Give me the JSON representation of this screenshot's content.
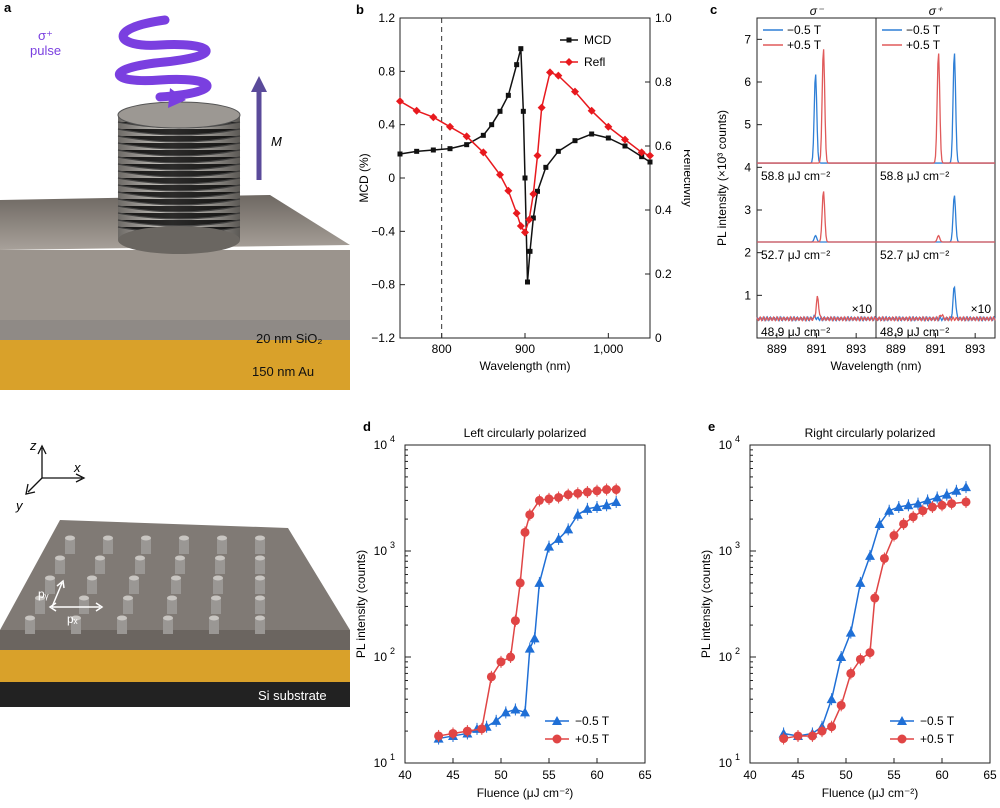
{
  "panel_labels": {
    "a": "a",
    "b": "b",
    "c": "c",
    "d": "d",
    "e": "e"
  },
  "panel_a": {
    "pulse_label": "pulse",
    "sigma_label": "σ⁺",
    "m_label": "M",
    "layer_sio2": "20 nm SiO₂",
    "layer_au": "150 nm Au",
    "axis_z": "z",
    "axis_x": "x",
    "axis_y": "y",
    "px_label": "pₓ",
    "py_label": "pᵧ",
    "substrate": "Si substrate",
    "colors": {
      "purple": "#7a3fe0",
      "gold": "#d9a12a",
      "gray": "#8a8580",
      "dark": "#222"
    }
  },
  "chart_data": [
    {
      "id": "b",
      "type": "line",
      "xlabel": "Wavelength (nm)",
      "ylabel": "MCD (%)",
      "y2label": "Reflectivity",
      "xlim": [
        750,
        1050
      ],
      "ylim": [
        -1.2,
        1.2
      ],
      "y2lim": [
        0,
        1.0
      ],
      "xticks": [
        800,
        900,
        1000
      ],
      "xtick_labels": [
        "800",
        "900",
        "1,000"
      ],
      "yticks": [
        -1.2,
        -0.8,
        -0.4,
        0,
        0.4,
        0.8,
        1.2
      ],
      "ytick_labels": [
        "−1.2",
        "−0.8",
        "−0.4",
        "0",
        "0.4",
        "0.8",
        "1.2"
      ],
      "y2ticks": [
        0,
        0.2,
        0.4,
        0.6,
        0.8,
        1.0
      ],
      "y2tick_labels": [
        "0",
        "0.2",
        "0.4",
        "0.6",
        "0.8",
        "1.0"
      ],
      "vline": 800,
      "series": [
        {
          "name": "MCD",
          "color": "#111111",
          "marker": "square",
          "x": [
            750,
            770,
            790,
            810,
            830,
            850,
            860,
            870,
            880,
            890,
            895,
            898,
            900,
            903,
            906,
            910,
            915,
            925,
            940,
            960,
            980,
            1000,
            1020,
            1040,
            1050
          ],
          "y": [
            0.18,
            0.2,
            0.21,
            0.22,
            0.25,
            0.32,
            0.4,
            0.5,
            0.62,
            0.85,
            0.97,
            0.5,
            0.0,
            -0.78,
            -0.55,
            -0.3,
            -0.1,
            0.08,
            0.2,
            0.28,
            0.33,
            0.3,
            0.24,
            0.16,
            0.12
          ]
        },
        {
          "name": "Refl",
          "color": "#e8191e",
          "marker": "diamond",
          "axis": "y2",
          "x": [
            750,
            770,
            790,
            810,
            830,
            850,
            870,
            880,
            890,
            895,
            900,
            905,
            910,
            915,
            920,
            930,
            940,
            960,
            980,
            1000,
            1020,
            1040,
            1050
          ],
          "y": [
            0.74,
            0.71,
            0.69,
            0.66,
            0.63,
            0.58,
            0.51,
            0.46,
            0.39,
            0.35,
            0.33,
            0.37,
            0.45,
            0.57,
            0.72,
            0.83,
            0.82,
            0.77,
            0.71,
            0.66,
            0.62,
            0.58,
            0.57
          ]
        }
      ],
      "legend": "top-right"
    },
    {
      "id": "c",
      "type": "line",
      "xlabel": "Wavelength (nm)",
      "ylabel": "PL intensity (×10³ counts)",
      "xlim": [
        888,
        894
      ],
      "ylim": [
        0,
        7.5
      ],
      "xticks": [
        889,
        891,
        893
      ],
      "xtick_labels": [
        "889",
        "891",
        "893"
      ],
      "yticks": [
        0,
        1,
        2,
        3,
        4,
        5,
        6,
        7
      ],
      "ytick_labels": [
        "",
        "1",
        "2",
        "3",
        "4",
        "5",
        "6",
        "7"
      ],
      "columns": [
        "σ⁻",
        "σ⁺"
      ],
      "series_names": [
        "−0.5 T",
        "+0.5 T"
      ],
      "series_colors": [
        "#2f7fd6",
        "#e05a5a"
      ],
      "rows": [
        {
          "label": "58.8 μJ cm⁻²",
          "baseline": 4.1,
          "peaks": [
            {
              "col": 0,
              "pos": 890.95,
              "h": 2.1,
              "s": 0
            },
            {
              "col": 0,
              "pos": 891.35,
              "h": 2.7,
              "s": 1
            },
            {
              "col": 1,
              "pos": 891.95,
              "h": 2.6,
              "s": 0
            },
            {
              "col": 1,
              "pos": 891.15,
              "h": 2.6,
              "s": 1
            }
          ]
        },
        {
          "label": "52.7 μJ cm⁻²",
          "baseline": 2.25,
          "peaks": [
            {
              "col": 0,
              "pos": 890.95,
              "h": 0.15,
              "s": 0
            },
            {
              "col": 0,
              "pos": 891.35,
              "h": 1.2,
              "s": 1
            },
            {
              "col": 1,
              "pos": 891.95,
              "h": 1.1,
              "s": 0
            },
            {
              "col": 1,
              "pos": 891.15,
              "h": 0.15,
              "s": 1
            }
          ]
        },
        {
          "label": "48.9 μJ cm⁻²",
          "baseline": 0.45,
          "scale": "×10",
          "peaks": [
            {
              "col": 0,
              "pos": 891.05,
              "h": 0.5,
              "s": 1
            },
            {
              "col": 0,
              "pos": 890.9,
              "h": 0.05,
              "s": 0
            },
            {
              "col": 1,
              "pos": 891.95,
              "h": 0.75,
              "s": 0
            },
            {
              "col": 1,
              "pos": 891.3,
              "h": 0.1,
              "s": 1
            }
          ]
        }
      ],
      "legend": "top-left"
    },
    {
      "id": "d",
      "type": "scatter",
      "title": "Left circularly polarized",
      "xlabel": "Fluence (μJ cm⁻²)",
      "ylabel": "PL intensity (counts)",
      "xlim": [
        40,
        65
      ],
      "ylim_log": [
        1,
        4
      ],
      "xticks": [
        40,
        45,
        50,
        55,
        60,
        65
      ],
      "xtick_labels": [
        "40",
        "45",
        "50",
        "55",
        "60",
        "65"
      ],
      "yticks": [
        1,
        2,
        3,
        4
      ],
      "series": [
        {
          "name": "−0.5 T",
          "color": "#1f6fd6",
          "marker": "triangle",
          "x": [
            43.5,
            45,
            46.5,
            47.5,
            48.5,
            49.5,
            50.5,
            51.5,
            52.5,
            53,
            53.5,
            54,
            55,
            56,
            57,
            58,
            59,
            60,
            61,
            62
          ],
          "y": [
            17,
            18,
            19,
            21,
            22,
            25,
            30,
            32,
            30,
            120,
            150,
            500,
            1100,
            1300,
            1600,
            2200,
            2500,
            2600,
            2700,
            2900
          ]
        },
        {
          "name": "+0.5 T",
          "color": "#e04545",
          "marker": "circle",
          "x": [
            43.5,
            45,
            46.5,
            48,
            49,
            50,
            51,
            51.5,
            52,
            52.5,
            53,
            54,
            55,
            56,
            57,
            58,
            59,
            60,
            61,
            62
          ],
          "y": [
            18,
            19,
            20,
            21,
            65,
            90,
            100,
            220,
            500,
            1500,
            2200,
            3000,
            3100,
            3200,
            3400,
            3500,
            3600,
            3700,
            3800,
            3800
          ]
        }
      ],
      "legend": "bottom-right"
    },
    {
      "id": "e",
      "type": "scatter",
      "title": "Right circularly polarized",
      "xlabel": "Fluence (μJ cm⁻²)",
      "ylabel": "PL intensity (counts)",
      "xlim": [
        40,
        65
      ],
      "ylim_log": [
        1,
        4
      ],
      "xticks": [
        40,
        45,
        50,
        55,
        60,
        65
      ],
      "xtick_labels": [
        "40",
        "45",
        "50",
        "55",
        "60",
        "65"
      ],
      "yticks": [
        1,
        2,
        3,
        4
      ],
      "series": [
        {
          "name": "−0.5 T",
          "color": "#1f6fd6",
          "marker": "triangle",
          "x": [
            43.5,
            45,
            46.5,
            47.5,
            48.5,
            49.5,
            50.5,
            51.5,
            52.5,
            53.5,
            54.5,
            55.5,
            56.5,
            57.5,
            58.5,
            59.5,
            60.5,
            61.5,
            62.5
          ],
          "y": [
            19,
            18,
            19,
            22,
            40,
            100,
            170,
            500,
            900,
            1800,
            2400,
            2600,
            2700,
            2800,
            3000,
            3200,
            3400,
            3700,
            4000
          ]
        },
        {
          "name": "+0.5 T",
          "color": "#e04545",
          "marker": "circle",
          "x": [
            43.5,
            45,
            46.5,
            47.5,
            48.5,
            49.5,
            50.5,
            51.5,
            52.5,
            53,
            54,
            55,
            56,
            57,
            58,
            59,
            60,
            61,
            62.5
          ],
          "y": [
            17,
            18,
            18,
            20,
            22,
            35,
            70,
            95,
            110,
            360,
            850,
            1400,
            1800,
            2100,
            2400,
            2600,
            2700,
            2800,
            2900
          ]
        }
      ],
      "legend": "bottom-right"
    }
  ]
}
